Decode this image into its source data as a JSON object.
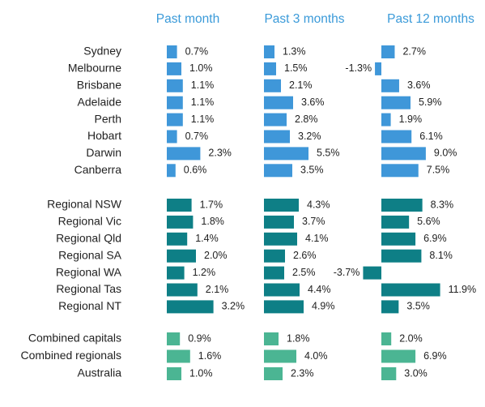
{
  "chart_data": {
    "type": "bar",
    "orientation": "horizontal",
    "panels": [
      "Past month",
      "Past 3 months",
      "Past 12 months"
    ],
    "colors": {
      "capitals": "#3f97d9",
      "regionals": "#0e7f86",
      "aggregates": "#4bb593"
    },
    "groups": [
      {
        "name": "capitals",
        "rows": [
          {
            "label": "Sydney",
            "values": [
              0.7,
              1.3,
              2.7
            ],
            "texts": [
              "0.7%",
              "1.3%",
              "2.7%"
            ]
          },
          {
            "label": "Melbourne",
            "values": [
              1.0,
              1.5,
              -1.3
            ],
            "texts": [
              "1.0%",
              "1.5%",
              "-1.3%"
            ]
          },
          {
            "label": "Brisbane",
            "values": [
              1.1,
              2.1,
              3.6
            ],
            "texts": [
              "1.1%",
              "2.1%",
              "3.6%"
            ]
          },
          {
            "label": "Adelaide",
            "values": [
              1.1,
              3.6,
              5.9
            ],
            "texts": [
              "1.1%",
              "3.6%",
              "5.9%"
            ]
          },
          {
            "label": "Perth",
            "values": [
              1.1,
              2.8,
              1.9
            ],
            "texts": [
              "1.1%",
              "2.8%",
              "1.9%"
            ]
          },
          {
            "label": "Hobart",
            "values": [
              0.7,
              3.2,
              6.1
            ],
            "texts": [
              "0.7%",
              "3.2%",
              "6.1%"
            ]
          },
          {
            "label": "Darwin",
            "values": [
              2.3,
              5.5,
              9.0
            ],
            "texts": [
              "2.3%",
              "5.5%",
              "9.0%"
            ]
          },
          {
            "label": "Canberra",
            "values": [
              0.6,
              3.5,
              7.5
            ],
            "texts": [
              "0.6%",
              "3.5%",
              "7.5%"
            ]
          }
        ]
      },
      {
        "name": "regionals",
        "rows": [
          {
            "label": "Regional NSW",
            "values": [
              1.7,
              4.3,
              8.3
            ],
            "texts": [
              "1.7%",
              "4.3%",
              "8.3%"
            ]
          },
          {
            "label": "Regional Vic",
            "values": [
              1.8,
              3.7,
              5.6
            ],
            "texts": [
              "1.8%",
              "3.7%",
              "5.6%"
            ]
          },
          {
            "label": "Regional Qld",
            "values": [
              1.4,
              4.1,
              6.9
            ],
            "texts": [
              "1.4%",
              "4.1%",
              "6.9%"
            ]
          },
          {
            "label": "Regional SA",
            "values": [
              2.0,
              2.6,
              8.1
            ],
            "texts": [
              "2.0%",
              "2.6%",
              "8.1%"
            ]
          },
          {
            "label": "Regional WA",
            "values": [
              1.2,
              2.5,
              -3.7
            ],
            "texts": [
              "1.2%",
              "2.5%",
              "-3.7%"
            ]
          },
          {
            "label": "Regional Tas",
            "values": [
              2.1,
              4.4,
              11.9
            ],
            "texts": [
              "2.1%",
              "4.4%",
              "11.9%"
            ]
          },
          {
            "label": "Regional NT",
            "values": [
              3.2,
              4.9,
              3.5
            ],
            "texts": [
              "3.2%",
              "4.9%",
              "3.5%"
            ]
          }
        ]
      },
      {
        "name": "aggregates",
        "rows": [
          {
            "label": "Combined capitals",
            "values": [
              0.9,
              1.8,
              2.0
            ],
            "texts": [
              "0.9%",
              "1.8%",
              "2.0%"
            ]
          },
          {
            "label": "Combined regionals",
            "values": [
              1.6,
              4.0,
              6.9
            ],
            "texts": [
              "1.6%",
              "4.0%",
              "6.9%"
            ]
          },
          {
            "label": "Australia",
            "values": [
              1.0,
              2.3,
              3.0
            ],
            "texts": [
              "1.0%",
              "2.3%",
              "3.0%"
            ]
          }
        ]
      }
    ]
  }
}
